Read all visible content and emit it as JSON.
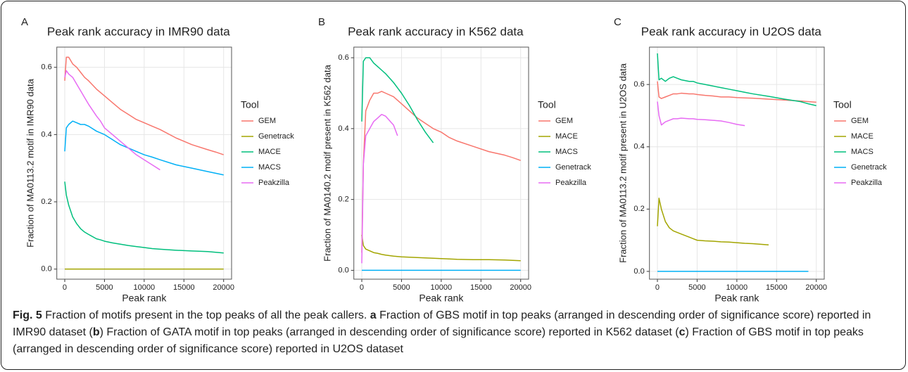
{
  "chart_data": [
    {
      "type": "line",
      "panel_label": "A",
      "title": "Peak rank accuracy in IMR90 data",
      "xlabel": "Peak rank",
      "ylabel": "Fraction of MA0113.2 motif in IMR90 data",
      "legend_title": "Tool",
      "x": [
        0,
        200,
        500,
        1000,
        1500,
        2000,
        2500,
        3000,
        4000,
        4500,
        5000,
        6000,
        7000,
        8000,
        9000,
        10000,
        11000,
        12000,
        14000,
        16000,
        18000,
        19000,
        20000
      ],
      "series": [
        {
          "name": "GEM",
          "color": "#F8766D",
          "values": [
            0.56,
            0.63,
            0.63,
            0.61,
            0.6,
            0.585,
            0.57,
            0.56,
            0.535,
            0.525,
            0.515,
            0.495,
            0.475,
            0.46,
            0.445,
            0.435,
            0.425,
            0.415,
            0.39,
            0.37,
            0.355,
            0.348,
            0.34
          ]
        },
        {
          "name": "Genetrack",
          "color": "#A3A500",
          "values": [
            0,
            0,
            0,
            0,
            0,
            0,
            0,
            0,
            0,
            0,
            0,
            0,
            0,
            0,
            0,
            0,
            0,
            0,
            0,
            0,
            0,
            0,
            0
          ]
        },
        {
          "name": "MACE",
          "color": "#00BF7D",
          "values": [
            0.26,
            0.22,
            0.19,
            0.155,
            0.135,
            0.12,
            0.11,
            0.103,
            0.09,
            0.087,
            0.083,
            0.078,
            0.074,
            0.07,
            0.067,
            0.064,
            0.061,
            0.059,
            0.056,
            0.054,
            0.052,
            0.05,
            0.048
          ]
        },
        {
          "name": "MACS",
          "color": "#00B0F6",
          "values": [
            0.35,
            0.42,
            0.43,
            0.44,
            0.435,
            0.43,
            0.43,
            0.425,
            0.41,
            0.405,
            0.4,
            0.385,
            0.37,
            0.36,
            0.35,
            0.34,
            0.333,
            0.325,
            0.31,
            0.3,
            0.29,
            0.285,
            0.28
          ]
        },
        {
          "name": "Peakzilla",
          "color": "#E76BF3",
          "values": [
            0.57,
            0.59,
            0.58,
            0.57,
            0.55,
            0.53,
            0.51,
            0.49,
            0.455,
            0.44,
            0.42,
            0.4,
            0.38,
            0.36,
            0.34,
            0.325,
            0.31,
            0.295,
            null,
            null,
            null,
            null,
            null
          ]
        }
      ],
      "xlim": [
        -1000,
        21000
      ],
      "ylim": [
        -0.03,
        0.66
      ],
      "xticks": [
        0,
        5000,
        10000,
        15000,
        20000
      ],
      "yticks": [
        {
          "value": 0,
          "label": "0.0"
        },
        0.2,
        0.4,
        0.6
      ],
      "grid": true
    },
    {
      "type": "line",
      "panel_label": "B",
      "title": "Peak rank accuracy in K562 data",
      "xlabel": "Peak rank",
      "ylabel": "Fraction of MA0140.2 motif present in K562 data",
      "legend_title": "Tool",
      "x": [
        0,
        200,
        500,
        1000,
        1500,
        2000,
        2500,
        3000,
        4000,
        4500,
        5000,
        6000,
        7000,
        8000,
        9000,
        10000,
        11000,
        12000,
        14000,
        16000,
        18000,
        19000,
        20000
      ],
      "series": [
        {
          "name": "GEM",
          "color": "#F8766D",
          "values": [
            0.05,
            0.3,
            0.45,
            0.48,
            0.5,
            0.5,
            0.505,
            0.5,
            0.49,
            0.48,
            0.47,
            0.45,
            0.43,
            0.415,
            0.4,
            0.39,
            0.375,
            0.365,
            0.35,
            0.335,
            0.325,
            0.318,
            0.31
          ]
        },
        {
          "name": "MACE",
          "color": "#A3A500",
          "values": [
            0.1,
            0.07,
            0.06,
            0.055,
            0.05,
            0.048,
            0.045,
            0.043,
            0.04,
            0.039,
            0.038,
            0.037,
            0.036,
            0.035,
            0.034,
            0.033,
            0.032,
            0.031,
            0.03,
            0.03,
            0.029,
            0.028,
            0.027
          ]
        },
        {
          "name": "MACS",
          "color": "#00BF7D",
          "values": [
            0.42,
            0.59,
            0.6,
            0.6,
            0.585,
            0.575,
            0.565,
            0.555,
            0.53,
            0.515,
            0.5,
            0.465,
            0.425,
            0.39,
            0.36,
            null,
            null,
            null,
            null,
            null,
            null,
            null,
            null
          ]
        },
        {
          "name": "Genetrack",
          "color": "#00B0F6",
          "values": [
            0,
            0,
            0,
            0,
            0,
            0,
            0,
            0,
            0,
            0,
            0,
            0,
            0,
            0,
            0,
            0,
            0,
            0,
            0,
            0,
            0,
            0,
            0
          ]
        },
        {
          "name": "Peakzilla",
          "color": "#E76BF3",
          "values": [
            0.02,
            0.3,
            0.38,
            0.4,
            0.42,
            0.43,
            0.44,
            0.435,
            0.41,
            0.38,
            null,
            null,
            null,
            null,
            null,
            null,
            null,
            null,
            null,
            null,
            null,
            null,
            null
          ]
        }
      ],
      "xlim": [
        -1000,
        21000
      ],
      "ylim": [
        -0.025,
        0.63
      ],
      "xticks": [
        0,
        5000,
        10000,
        15000,
        20000
      ],
      "yticks": [
        {
          "value": 0,
          "label": "0.0"
        },
        0.2,
        0.4,
        0.6
      ],
      "grid": true
    },
    {
      "type": "line",
      "panel_label": "C",
      "title": "Peak rank accuracy in U2OS data",
      "xlabel": "Peak rank",
      "ylabel": "Fraction of MA0113.2 motif present in U2OS data",
      "legend_title": "Tool",
      "x": [
        0,
        200,
        500,
        1000,
        1500,
        2000,
        2500,
        3000,
        4000,
        4500,
        5000,
        6000,
        7000,
        8000,
        9000,
        10000,
        11000,
        12000,
        14000,
        16000,
        18000,
        19000,
        20000
      ],
      "series": [
        {
          "name": "GEM",
          "color": "#F8766D",
          "values": [
            0.61,
            0.56,
            0.555,
            0.56,
            0.565,
            0.57,
            0.57,
            0.572,
            0.57,
            0.57,
            0.568,
            0.565,
            0.563,
            0.56,
            0.56,
            0.558,
            0.557,
            0.556,
            0.553,
            0.55,
            0.547,
            0.545,
            0.543
          ]
        },
        {
          "name": "MACE",
          "color": "#A3A500",
          "values": [
            0.145,
            0.235,
            0.2,
            0.16,
            0.14,
            0.13,
            0.125,
            0.12,
            0.11,
            0.105,
            0.1,
            0.098,
            0.097,
            0.095,
            0.094,
            0.092,
            0.09,
            0.089,
            0.085,
            null,
            null,
            null,
            null
          ]
        },
        {
          "name": "MACS",
          "color": "#00BF7D",
          "values": [
            0.7,
            0.615,
            0.62,
            0.61,
            0.62,
            0.625,
            0.62,
            0.615,
            0.61,
            0.61,
            0.605,
            0.6,
            0.595,
            0.59,
            0.585,
            0.58,
            0.575,
            0.57,
            0.562,
            0.553,
            0.545,
            0.538,
            0.532
          ]
        },
        {
          "name": "Genetrack",
          "color": "#00B0F6",
          "values": [
            0,
            0,
            0,
            0,
            0,
            0,
            0,
            0,
            0,
            0,
            0,
            0,
            0,
            0,
            0,
            0,
            0,
            0,
            0,
            0,
            0,
            0,
            null
          ]
        },
        {
          "name": "Peakzilla",
          "color": "#E76BF3",
          "values": [
            0.545,
            0.5,
            0.47,
            0.48,
            0.485,
            0.49,
            0.49,
            0.492,
            0.49,
            0.49,
            0.488,
            0.487,
            0.485,
            0.483,
            0.478,
            0.472,
            0.468,
            null,
            null,
            null,
            null,
            null,
            null
          ]
        }
      ],
      "xlim": [
        -1000,
        21000
      ],
      "ylim": [
        -0.025,
        0.72
      ],
      "xticks": [
        0,
        5000,
        10000,
        15000,
        20000
      ],
      "yticks": [
        {
          "value": 0,
          "label": "0.0"
        },
        0.2,
        0.4,
        0.6
      ],
      "grid": true
    }
  ],
  "caption": {
    "label": "Fig. 5",
    "parts": [
      " Fraction of motifs present in the top peaks of all the peak callers. ",
      "a",
      " Fraction of GBS motif in top peaks (arranged in descending order of significance score) reported in IMR90 dataset (",
      "b",
      ") Fraction of GATA motif in top peaks (arranged in descending order of significance score) reported in K562 dataset (",
      "c",
      ") Fraction of GBS motif in top peaks (arranged in descending order of significance score) reported in U2OS dataset"
    ]
  }
}
